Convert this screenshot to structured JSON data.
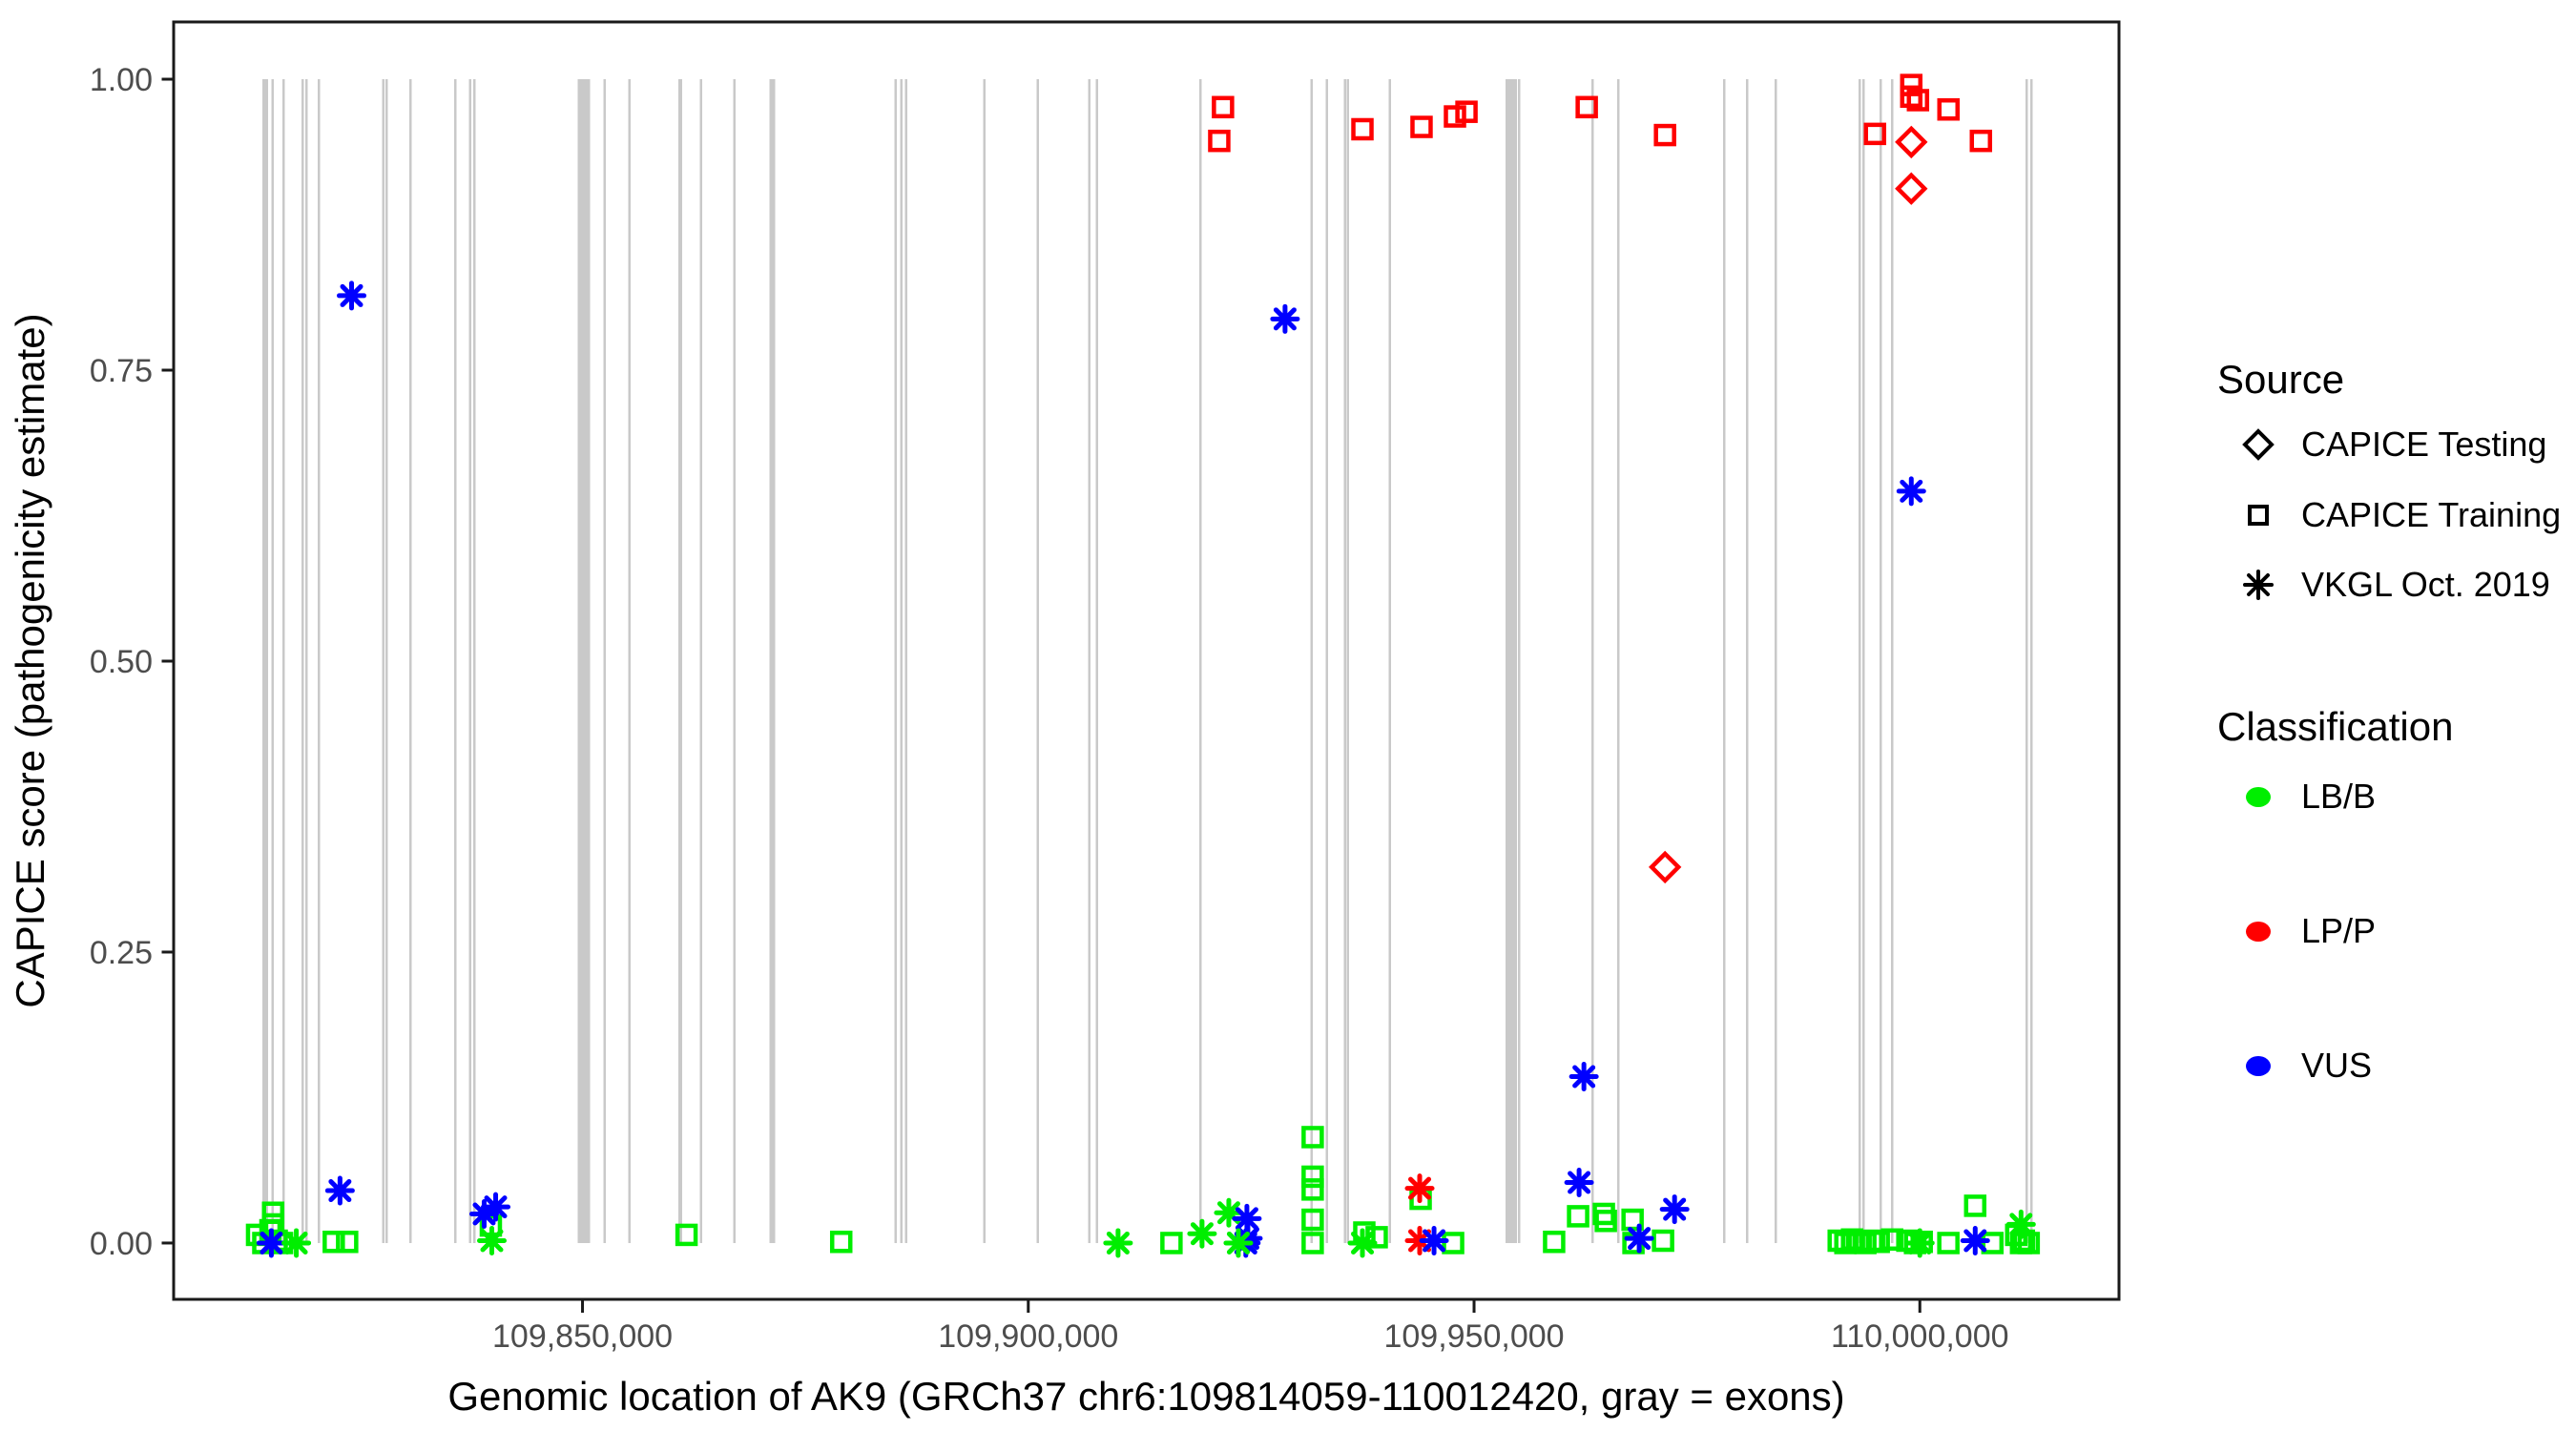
{
  "chart_data": {
    "type": "scatter",
    "title": "",
    "xlabel": "Genomic location of AK9 (GRCh37 chr6:109814059-110012420, gray = exons)",
    "ylabel": "CAPICE score (pathogenicity estimate)",
    "xlim": [
      109804141,
      110022338
    ],
    "ylim": [
      -0.0484,
      1.0492
    ],
    "grid": "off",
    "x_ticks": [
      {
        "value": 109850000,
        "label": "109,850,000"
      },
      {
        "value": 109900000,
        "label": "109,900,000"
      },
      {
        "value": 109950000,
        "label": "109,950,000"
      },
      {
        "value": 110000000,
        "label": "110,000,000"
      }
    ],
    "y_ticks": [
      {
        "value": 1.0,
        "label": "1.00"
      },
      {
        "value": 0.75,
        "label": "0.75"
      },
      {
        "value": 0.5,
        "label": "0.50"
      },
      {
        "value": 0.25,
        "label": "0.25"
      },
      {
        "value": 0.0,
        "label": "0.00"
      }
    ],
    "colors": {
      "LB/B": "#00EE00",
      "LP/P": "#FF0000",
      "VUS": "#0000FF"
    },
    "exon_color": "#C9C9C9",
    "border_color": "#1A1A1A",
    "tick_text_color": "#4D4D4D",
    "marker_shapes": {
      "testing": "diamond",
      "training": "square",
      "vkgl": "asterisk"
    },
    "exons_note": "gray bars span score 0 to 1; entries are [genomic_center, width_bp]",
    "exons": [
      [
        109814410,
        640
      ],
      [
        109815230,
        210
      ],
      [
        109816490,
        210
      ],
      [
        109818630,
        210
      ],
      [
        109819060,
        210
      ],
      [
        109820450,
        210
      ],
      [
        109827680,
        210
      ],
      [
        109828010,
        210
      ],
      [
        109830730,
        210
      ],
      [
        109835760,
        210
      ],
      [
        109837370,
        210
      ],
      [
        109837870,
        210
      ],
      [
        109850160,
        1390
      ],
      [
        109852460,
        210
      ],
      [
        109855250,
        210
      ],
      [
        109860970,
        430
      ],
      [
        109863280,
        210
      ],
      [
        109867020,
        210
      ],
      [
        109871300,
        640
      ],
      [
        109885120,
        210
      ],
      [
        109885760,
        210
      ],
      [
        109886290,
        210
      ],
      [
        109895070,
        210
      ],
      [
        109901070,
        210
      ],
      [
        109906850,
        210
      ],
      [
        109907710,
        210
      ],
      [
        109919300,
        210
      ],
      [
        109931790,
        210
      ],
      [
        109933510,
        210
      ],
      [
        109935540,
        210
      ],
      [
        109935860,
        210
      ],
      [
        109940570,
        210
      ],
      [
        109954170,
        1280
      ],
      [
        109955030,
        210
      ],
      [
        109963270,
        210
      ],
      [
        109966160,
        210
      ],
      [
        109978050,
        210
      ],
      [
        109980620,
        210
      ],
      [
        109983830,
        210
      ],
      [
        109993250,
        210
      ],
      [
        109993680,
        210
      ],
      [
        109995600,
        210
      ],
      [
        109996890,
        210
      ],
      [
        110011990,
        210
      ],
      [
        110012520,
        210
      ]
    ],
    "points_note": "entries are [genomic_position, capice_score, source, classification]",
    "points": [
      [
        109813500,
        0.007,
        "training",
        "LB/B"
      ],
      [
        109814200,
        0.0,
        "training",
        "LB/B"
      ],
      [
        109815000,
        0.011,
        "training",
        "LB/B"
      ],
      [
        109815300,
        0.026,
        "training",
        "LB/B"
      ],
      [
        109815300,
        0.016,
        "training",
        "LB/B"
      ],
      [
        109815700,
        0.002,
        "training",
        "LB/B"
      ],
      [
        109816300,
        0.0,
        "training",
        "LB/B"
      ],
      [
        109815100,
        0.0,
        "vkgl",
        "VUS"
      ],
      [
        109817900,
        0.0,
        "vkgl",
        "LB/B"
      ],
      [
        109822100,
        0.001,
        "training",
        "LB/B"
      ],
      [
        109823600,
        0.001,
        "training",
        "LB/B"
      ],
      [
        109822800,
        0.045,
        "vkgl",
        "VUS"
      ],
      [
        109824100,
        0.814,
        "vkgl",
        "VUS"
      ],
      [
        109838970,
        0.025,
        "vkgl",
        "VUS"
      ],
      [
        109840260,
        0.031,
        "vkgl",
        "VUS"
      ],
      [
        109839720,
        0.015,
        "training",
        "LB/B"
      ],
      [
        109839830,
        0.002,
        "vkgl",
        "LB/B"
      ],
      [
        109861670,
        0.007,
        "training",
        "LB/B"
      ],
      [
        109879020,
        0.001,
        "training",
        "LB/B"
      ],
      [
        109910070,
        0.0,
        "vkgl",
        "LB/B"
      ],
      [
        109916060,
        0.0,
        "training",
        "LB/B"
      ],
      [
        109919490,
        0.008,
        "vkgl",
        "LB/B"
      ],
      [
        109922490,
        0.026,
        "vkgl",
        "LB/B"
      ],
      [
        109924520,
        0.021,
        "vkgl",
        "VUS"
      ],
      [
        109924630,
        0.004,
        "vkgl",
        "VUS"
      ],
      [
        109924400,
        0.0,
        "vkgl",
        "VUS"
      ],
      [
        109923560,
        0.0,
        "vkgl",
        "LB/B"
      ],
      [
        109928800,
        0.794,
        "vkgl",
        "VUS"
      ],
      [
        109931900,
        0.091,
        "training",
        "LB/B"
      ],
      [
        109931900,
        0.057,
        "training",
        "LB/B"
      ],
      [
        109931900,
        0.046,
        "training",
        "LB/B"
      ],
      [
        109931900,
        0.02,
        "training",
        "LB/B"
      ],
      [
        109931900,
        0.0,
        "training",
        "LB/B"
      ],
      [
        109937690,
        0.009,
        "training",
        "LB/B"
      ],
      [
        109939080,
        0.005,
        "training",
        "LB/B"
      ],
      [
        109937480,
        0.0,
        "vkgl",
        "LB/B"
      ],
      [
        109943900,
        0.047,
        "vkgl",
        "LP/P"
      ],
      [
        109944010,
        0.038,
        "training",
        "LB/B"
      ],
      [
        109943900,
        0.002,
        "vkgl",
        "LP/P"
      ],
      [
        109945510,
        0.002,
        "vkgl",
        "VUS"
      ],
      [
        109947650,
        0.0,
        "training",
        "LB/B"
      ],
      [
        109921840,
        0.976,
        "training",
        "LP/P"
      ],
      [
        109921420,
        0.947,
        "training",
        "LP/P"
      ],
      [
        109937480,
        0.957,
        "training",
        "LP/P"
      ],
      [
        109944110,
        0.959,
        "training",
        "LP/P"
      ],
      [
        109947860,
        0.968,
        "training",
        "LP/P"
      ],
      [
        109949150,
        0.972,
        "training",
        "LP/P"
      ],
      [
        109962640,
        0.976,
        "training",
        "LP/P"
      ],
      [
        109971420,
        0.952,
        "training",
        "LP/P"
      ],
      [
        109971420,
        0.323,
        "testing",
        "LP/P"
      ],
      [
        109994970,
        0.953,
        "training",
        "LP/P"
      ],
      [
        109999040,
        0.995,
        "training",
        "LP/P"
      ],
      [
        109999040,
        0.985,
        "training",
        "LP/P"
      ],
      [
        109999790,
        0.982,
        "training",
        "LP/P"
      ],
      [
        110003210,
        0.974,
        "training",
        "LP/P"
      ],
      [
        109999040,
        0.946,
        "testing",
        "LP/P"
      ],
      [
        110006850,
        0.947,
        "training",
        "LP/P"
      ],
      [
        109999040,
        0.906,
        "testing",
        "LP/P"
      ],
      [
        109999040,
        0.646,
        "vkgl",
        "VUS"
      ],
      [
        109962320,
        0.143,
        "vkgl",
        "VUS"
      ],
      [
        109961780,
        0.052,
        "vkgl",
        "VUS"
      ],
      [
        109961670,
        0.023,
        "training",
        "LB/B"
      ],
      [
        109958980,
        0.001,
        "training",
        "LB/B"
      ],
      [
        109964560,
        0.025,
        "training",
        "LB/B"
      ],
      [
        109964780,
        0.019,
        "training",
        "LB/B"
      ],
      [
        109967780,
        0.02,
        "training",
        "LB/B"
      ],
      [
        109968520,
        0.004,
        "vkgl",
        "VUS"
      ],
      [
        109967880,
        0.0,
        "training",
        "LB/B"
      ],
      [
        109972490,
        0.029,
        "vkgl",
        "VUS"
      ],
      [
        109971200,
        0.002,
        "training",
        "LB/B"
      ],
      [
        109990900,
        0.002,
        "training",
        "LB/B"
      ],
      [
        109991650,
        0.0,
        "training",
        "LB/B"
      ],
      [
        109992400,
        0.003,
        "training",
        "LB/B"
      ],
      [
        109993140,
        0.001,
        "training",
        "LB/B"
      ],
      [
        109993890,
        0.0,
        "training",
        "LB/B"
      ],
      [
        109994640,
        0.002,
        "training",
        "LB/B"
      ],
      [
        109995390,
        0.001,
        "training",
        "LB/B"
      ],
      [
        109996890,
        0.003,
        "training",
        "LB/B"
      ],
      [
        109998600,
        0.002,
        "training",
        "LB/B"
      ],
      [
        109999460,
        0.0,
        "training",
        "LB/B"
      ],
      [
        110000210,
        0.001,
        "training",
        "LB/B"
      ],
      [
        110000000,
        0.0,
        "vkgl",
        "LB/B"
      ],
      [
        110003200,
        0.0,
        "training",
        "LB/B"
      ],
      [
        110006210,
        0.032,
        "training",
        "LB/B"
      ],
      [
        110006210,
        0.002,
        "vkgl",
        "VUS"
      ],
      [
        110008140,
        0.0,
        "training",
        "LB/B"
      ],
      [
        110011350,
        0.016,
        "vkgl",
        "LB/B"
      ],
      [
        110010810,
        0.007,
        "training",
        "LB/B"
      ],
      [
        110011670,
        0.002,
        "training",
        "LB/B"
      ],
      [
        110012210,
        0.0,
        "training",
        "LB/B"
      ],
      [
        110011350,
        0.0,
        "training",
        "LB/B"
      ]
    ],
    "legend": {
      "position": "right",
      "source": {
        "title": "Source",
        "items": [
          {
            "label": "CAPICE Testing",
            "marker": "diamond"
          },
          {
            "label": "CAPICE Training",
            "marker": "square"
          },
          {
            "label": "VKGL Oct. 2019",
            "marker": "asterisk"
          }
        ]
      },
      "classification": {
        "title": "Classification",
        "items": [
          {
            "label": "LB/B",
            "color": "#00EE00"
          },
          {
            "label": "LP/P",
            "color": "#FF0000"
          },
          {
            "label": "VUS",
            "color": "#0000FF"
          }
        ]
      }
    }
  }
}
